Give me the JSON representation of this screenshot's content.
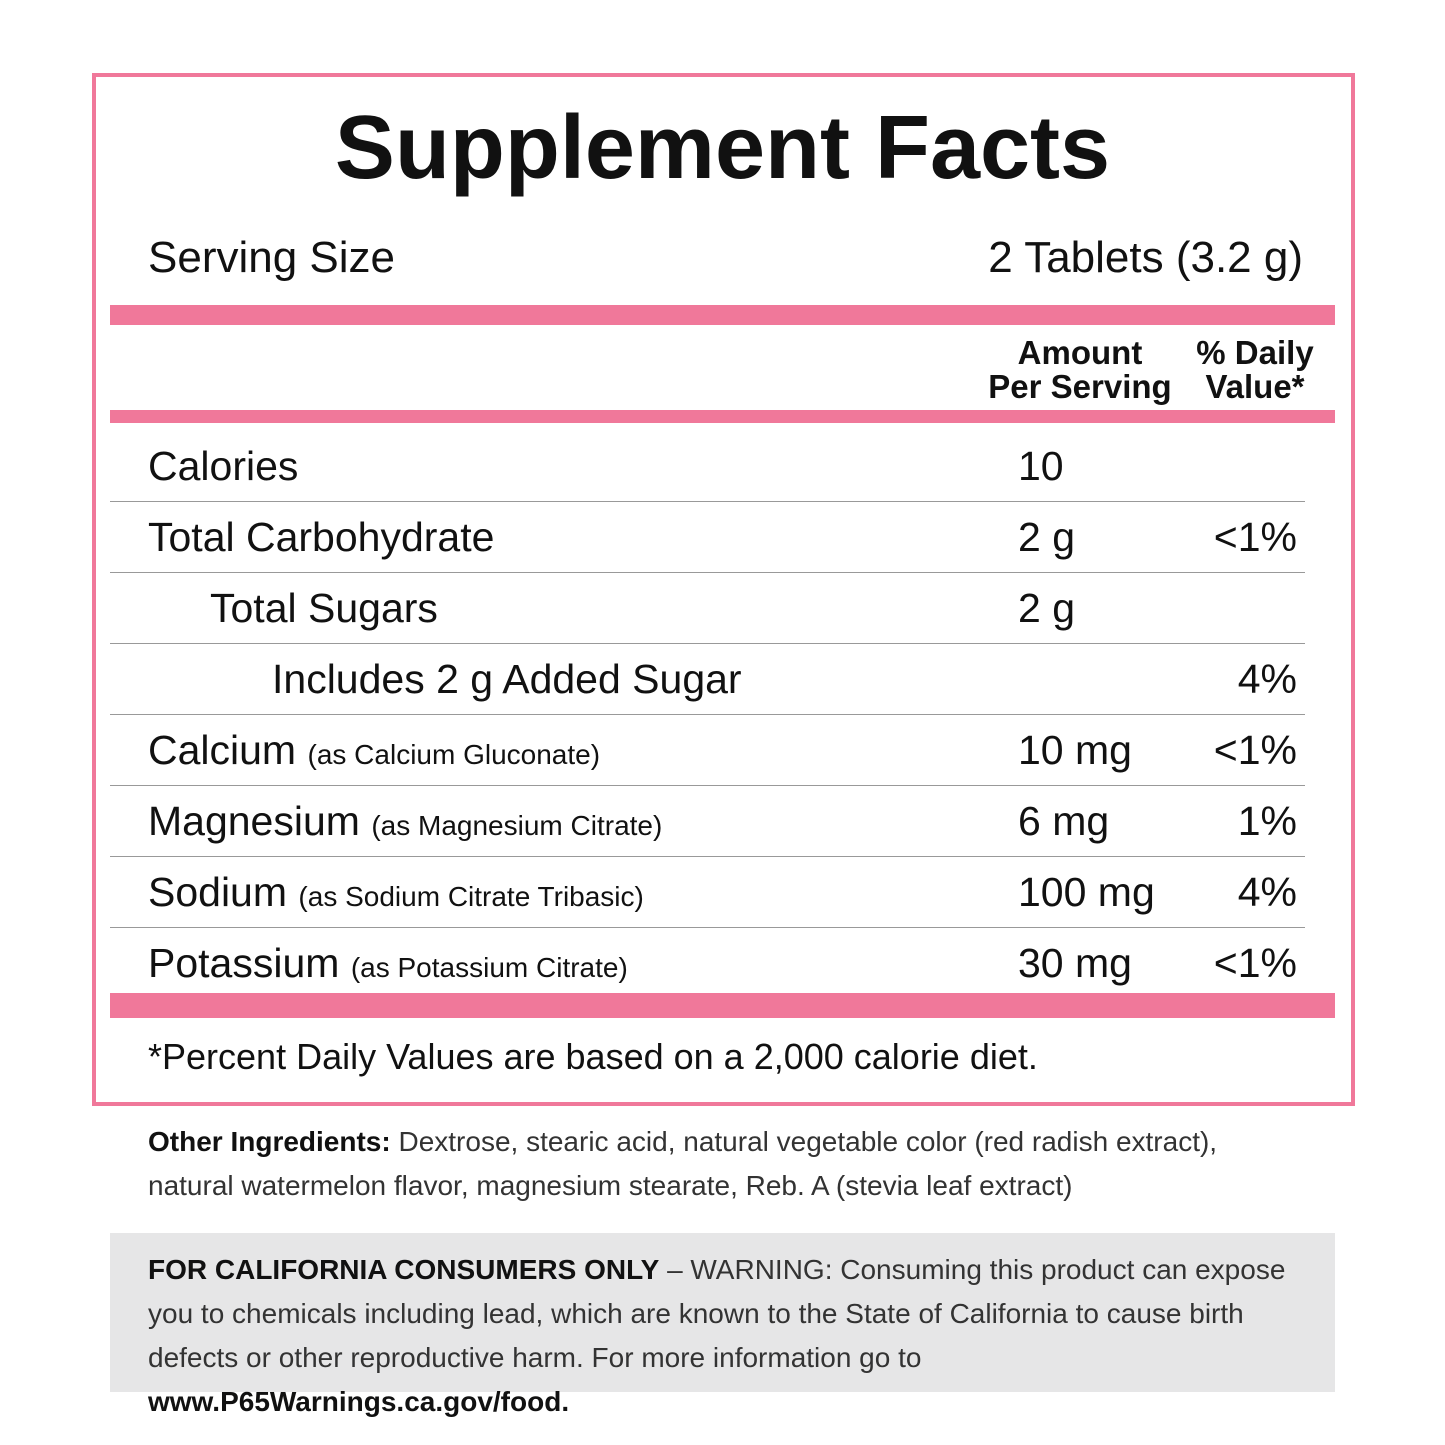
{
  "header": {
    "title": "Supplement Facts",
    "serving_size_label": "Serving Size",
    "serving_size_value": "2 Tablets (3.2 g)"
  },
  "columns": {
    "amount_line1": "Amount",
    "amount_line2": "Per Serving",
    "dv_line1": "% Daily",
    "dv_line2": "Value*"
  },
  "rows": [
    {
      "name": "Calories",
      "note": null,
      "amount": "10",
      "dv": null,
      "indent": 0
    },
    {
      "name": "Total Carbohydrate",
      "note": null,
      "amount": "2 g",
      "dv": "<1%",
      "indent": 0
    },
    {
      "name": "Total Sugars",
      "note": null,
      "amount": "2 g",
      "dv": null,
      "indent": 1
    },
    {
      "name": "Includes 2 g Added Sugar",
      "note": null,
      "amount": null,
      "dv": "4%",
      "indent": 2
    },
    {
      "name": "Calcium",
      "note": "(as Calcium Gluconate)",
      "amount": "10 mg",
      "dv": "<1%",
      "indent": 0
    },
    {
      "name": "Magnesium",
      "note": "(as Magnesium Citrate)",
      "amount": "6 mg",
      "dv": "1%",
      "indent": 0
    },
    {
      "name": "Sodium",
      "note": "(as Sodium Citrate Tribasic)",
      "amount": "100 mg",
      "dv": "4%",
      "indent": 0
    },
    {
      "name": "Potassium",
      "note": "(as Potassium Citrate)",
      "amount": "30 mg",
      "dv": "<1%",
      "indent": 0
    }
  ],
  "footnote": "*Percent Daily Values are based on a 2,000 calorie diet.",
  "other_ingredients": {
    "label": "Other Ingredients:",
    "text": "Dextrose, stearic acid, natural vegetable color (red radish extract), natural watermelon flavor, magnesium stearate, Reb. A (stevia leaf extract)"
  },
  "warning": {
    "label": "FOR CALIFORNIA CONSUMERS ONLY",
    "text": "– WARNING: Consuming this product can expose you to chemicals including lead, which are known to the State of California to cause birth defects or other reproductive harm. For more information go to",
    "link": "www.P65Warnings.ca.gov/food."
  }
}
